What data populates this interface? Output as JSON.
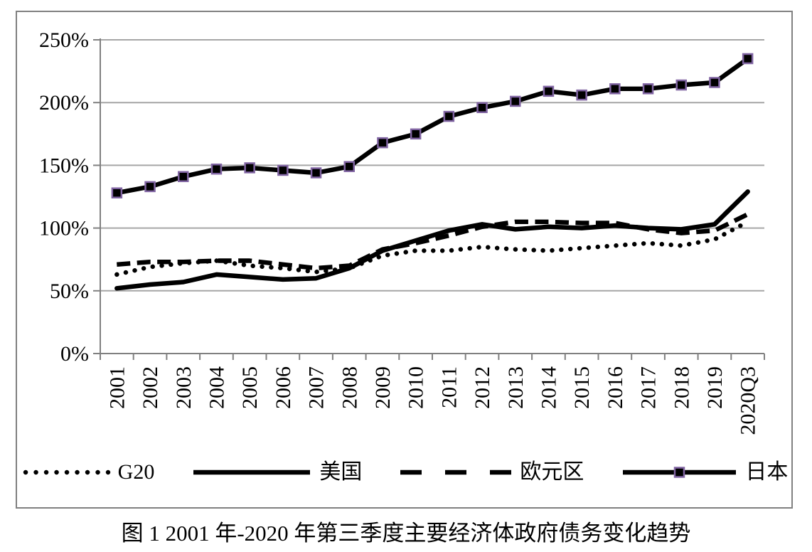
{
  "figure": {
    "caption": "图 1 2001 年-2020 年第三季度主要经济体政府债务变化趋势"
  },
  "colors": {
    "line": "#000000",
    "gridline": "#a6a6a6",
    "axis": "#808080",
    "figure_border": "#808080",
    "japan_marker_fill": "#000000",
    "japan_marker_border": "#8064a2",
    "background": "#ffffff"
  },
  "chart_data": {
    "type": "line",
    "title": "",
    "xlabel": "",
    "ylabel": "",
    "ylim": [
      0,
      250
    ],
    "ytick_step": 50,
    "ytick_labels": [
      "0%",
      "50%",
      "100%",
      "150%",
      "200%",
      "250%"
    ],
    "grid": true,
    "legend_position": "bottom",
    "categories": [
      "2001",
      "2002",
      "2003",
      "2004",
      "2005",
      "2006",
      "2007",
      "2008",
      "2009",
      "2010",
      "2011",
      "2012",
      "2013",
      "2014",
      "2015",
      "2016",
      "2017",
      "2018",
      "2019",
      "2020Q3"
    ],
    "series": [
      {
        "name": "G20",
        "line_style": "dotted",
        "color": "#000000",
        "values": [
          63,
          69,
          72,
          74,
          70,
          68,
          65,
          68,
          78,
          82,
          82,
          85,
          83,
          82,
          84,
          86,
          88,
          86,
          91,
          105
        ]
      },
      {
        "name": "美国",
        "line_style": "solid",
        "color": "#000000",
        "values": [
          52,
          55,
          57,
          63,
          61,
          59,
          60,
          68,
          82,
          90,
          98,
          103,
          99,
          101,
          100,
          102,
          100,
          99,
          103,
          129
        ]
      },
      {
        "name": "欧元区",
        "line_style": "dashed",
        "color": "#000000",
        "values": [
          71,
          73,
          73,
          74,
          74,
          71,
          68,
          70,
          83,
          88,
          94,
          101,
          105,
          105,
          104,
          104,
          99,
          96,
          98,
          111
        ]
      },
      {
        "name": "日本",
        "line_style": "solid_with_square_markers",
        "color": "#000000",
        "marker": {
          "shape": "square",
          "fill": "#000000",
          "border": "#8064a2"
        },
        "values": [
          128,
          133,
          141,
          147,
          148,
          146,
          144,
          149,
          168,
          175,
          189,
          196,
          201,
          209,
          206,
          211,
          211,
          214,
          216,
          235
        ]
      }
    ]
  }
}
